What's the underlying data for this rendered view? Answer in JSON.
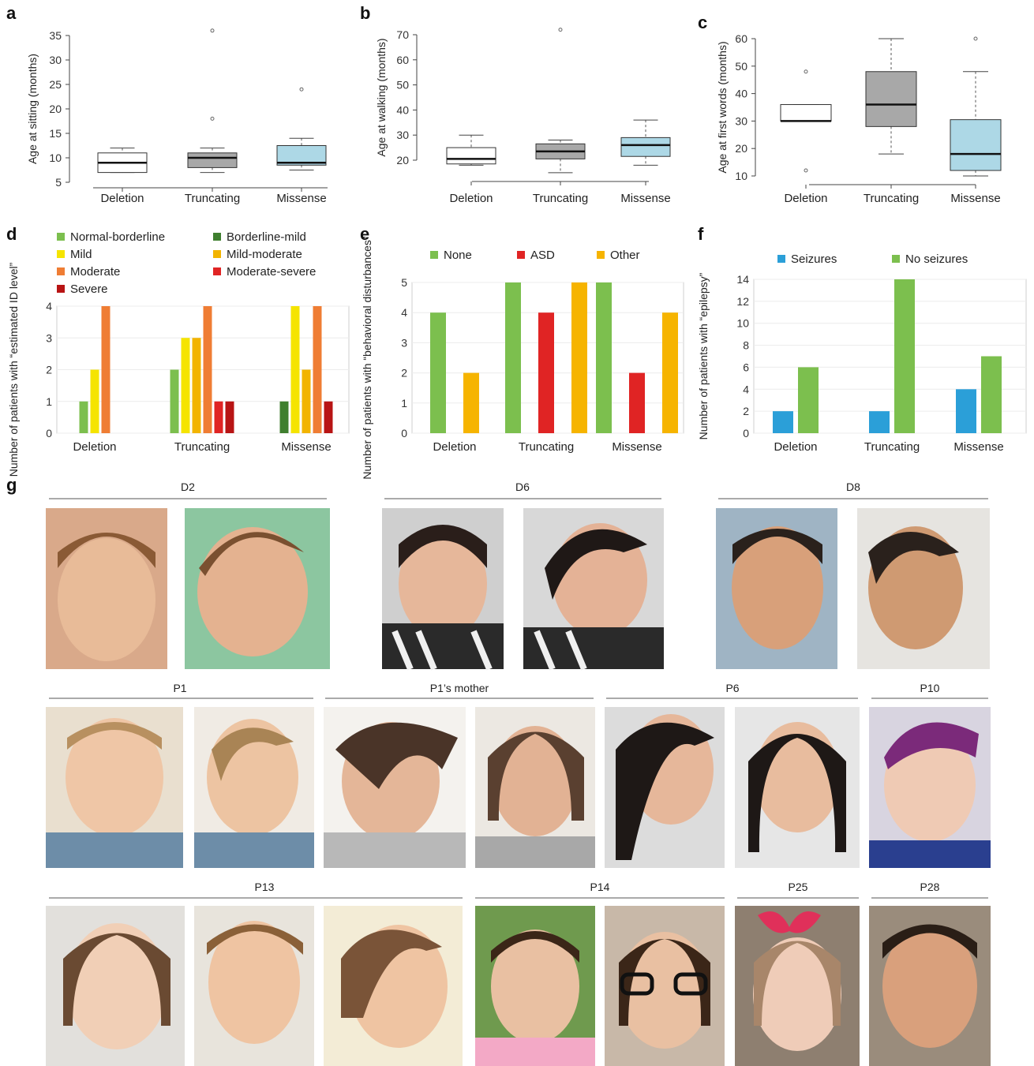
{
  "panel_labels": [
    "a",
    "b",
    "c",
    "d",
    "e",
    "f",
    "g"
  ],
  "colors": {
    "deletion_box": "#ffffff",
    "truncating_box": "#a8a8a8",
    "missense_box": "#add8e6",
    "normal_borderline": "#7cbf4e",
    "borderline_mild": "#3f7f2f",
    "mild": "#f5e400",
    "mild_moderate": "#f2b400",
    "moderate": "#ef7d34",
    "moderate_severe": "#e02424",
    "severe": "#b81414",
    "none": "#7cbf4e",
    "asd": "#e02424",
    "other": "#f6b400",
    "seizures": "#2b9fd8",
    "no_seizures": "#7cbf4e"
  },
  "chart_data": [
    {
      "panel": "a",
      "type": "box",
      "categories": [
        "Deletion",
        "Truncating",
        "Missense"
      ],
      "ylabel": "Age at sitting (months)",
      "ylim": [
        5,
        35
      ],
      "yticks": [
        5,
        10,
        15,
        20,
        25,
        30,
        35
      ],
      "boxes": [
        {
          "name": "Deletion",
          "min": 7,
          "q1": 7,
          "median": 9,
          "q3": 11,
          "max": 12,
          "outliers": []
        },
        {
          "name": "Truncating",
          "min": 7,
          "q1": 8,
          "median": 10,
          "q3": 11,
          "max": 12,
          "outliers": [
            18,
            36
          ]
        },
        {
          "name": "Missense",
          "min": 7.5,
          "q1": 8.5,
          "median": 9,
          "q3": 12.5,
          "max": 14,
          "outliers": [
            24
          ]
        }
      ]
    },
    {
      "panel": "b",
      "type": "box",
      "categories": [
        "Deletion",
        "Truncating",
        "Missense"
      ],
      "ylabel": "Age at walking (months)",
      "ylim": [
        20,
        70
      ],
      "yticks": [
        20,
        30,
        40,
        50,
        60,
        70
      ],
      "boxes": [
        {
          "name": "Deletion",
          "min": 18,
          "q1": 18.5,
          "median": 20.5,
          "q3": 25,
          "max": 30,
          "outliers": []
        },
        {
          "name": "Truncating",
          "min": 15,
          "q1": 20.5,
          "median": 23.5,
          "q3": 26.5,
          "max": 28,
          "outliers": [
            72
          ]
        },
        {
          "name": "Missense",
          "min": 18,
          "q1": 21.5,
          "median": 26,
          "q3": 29,
          "max": 36,
          "outliers": []
        }
      ]
    },
    {
      "panel": "c",
      "type": "box",
      "categories": [
        "Deletion",
        "Truncating",
        "Missense"
      ],
      "ylabel": "Age at first words (months)",
      "ylim": [
        10,
        60
      ],
      "yticks": [
        10,
        20,
        30,
        40,
        50,
        60
      ],
      "boxes": [
        {
          "name": "Deletion",
          "min": 30,
          "q1": 30,
          "median": 30,
          "q3": 36,
          "max": 36,
          "outliers": [
            12,
            48
          ]
        },
        {
          "name": "Truncating",
          "min": 18,
          "q1": 28,
          "median": 36,
          "q3": 48,
          "max": 60,
          "outliers": []
        },
        {
          "name": "Missense",
          "min": 10,
          "q1": 12,
          "median": 18,
          "q3": 30.5,
          "max": 48,
          "outliers": [
            60
          ]
        }
      ]
    },
    {
      "panel": "d",
      "type": "bar",
      "categories": [
        "Deletion",
        "Truncating",
        "Missense"
      ],
      "ylabel": "Number of patients with “estimated ID level”",
      "ylim": [
        0,
        4
      ],
      "yticks": [
        0,
        1,
        2,
        3,
        4
      ],
      "legend": [
        "Normal-borderline",
        "Borderline-mild",
        "Mild",
        "Mild-moderate",
        "Moderate",
        "Moderate-severe",
        "Severe"
      ],
      "series": [
        {
          "name": "Normal-borderline",
          "values": [
            1,
            2,
            0
          ]
        },
        {
          "name": "Borderline-mild",
          "values": [
            0,
            0,
            1
          ]
        },
        {
          "name": "Mild",
          "values": [
            2,
            3,
            4
          ]
        },
        {
          "name": "Mild-moderate",
          "values": [
            0,
            3,
            2
          ]
        },
        {
          "name": "Moderate",
          "values": [
            4,
            4,
            4
          ]
        },
        {
          "name": "Moderate-severe",
          "values": [
            0,
            1,
            0
          ]
        },
        {
          "name": "Severe",
          "values": [
            0,
            1,
            1
          ]
        }
      ]
    },
    {
      "panel": "e",
      "type": "bar",
      "categories": [
        "Deletion",
        "Truncating",
        "Missense"
      ],
      "ylabel": "Number of patients with “behavioral disturbances”",
      "ylim": [
        0,
        5
      ],
      "yticks": [
        0,
        1,
        2,
        3,
        4,
        5
      ],
      "legend": [
        "None",
        "ASD",
        "Other"
      ],
      "series": [
        {
          "name": "None",
          "values": [
            4,
            5,
            5
          ]
        },
        {
          "name": "ASD",
          "values": [
            0,
            4,
            2
          ]
        },
        {
          "name": "Other",
          "values": [
            2,
            5,
            4
          ]
        }
      ]
    },
    {
      "panel": "f",
      "type": "bar",
      "categories": [
        "Deletion",
        "Truncating",
        "Missense"
      ],
      "ylabel": "Number of patients with “epilepsy”",
      "ylim": [
        0,
        14
      ],
      "yticks": [
        0,
        2,
        4,
        6,
        8,
        10,
        12,
        14
      ],
      "legend": [
        "Seizures",
        "No seizures"
      ],
      "series": [
        {
          "name": "Seizures",
          "values": [
            2,
            2,
            4
          ]
        },
        {
          "name": "No seizures",
          "values": [
            6,
            14,
            7
          ]
        }
      ]
    }
  ],
  "photo_groups": {
    "row1": [
      "D2",
      "D6",
      "D8"
    ],
    "row2": [
      "P1",
      "P1’s mother",
      "P6",
      "P10"
    ],
    "row3": [
      "P13",
      "P14",
      "P25",
      "P28"
    ]
  }
}
